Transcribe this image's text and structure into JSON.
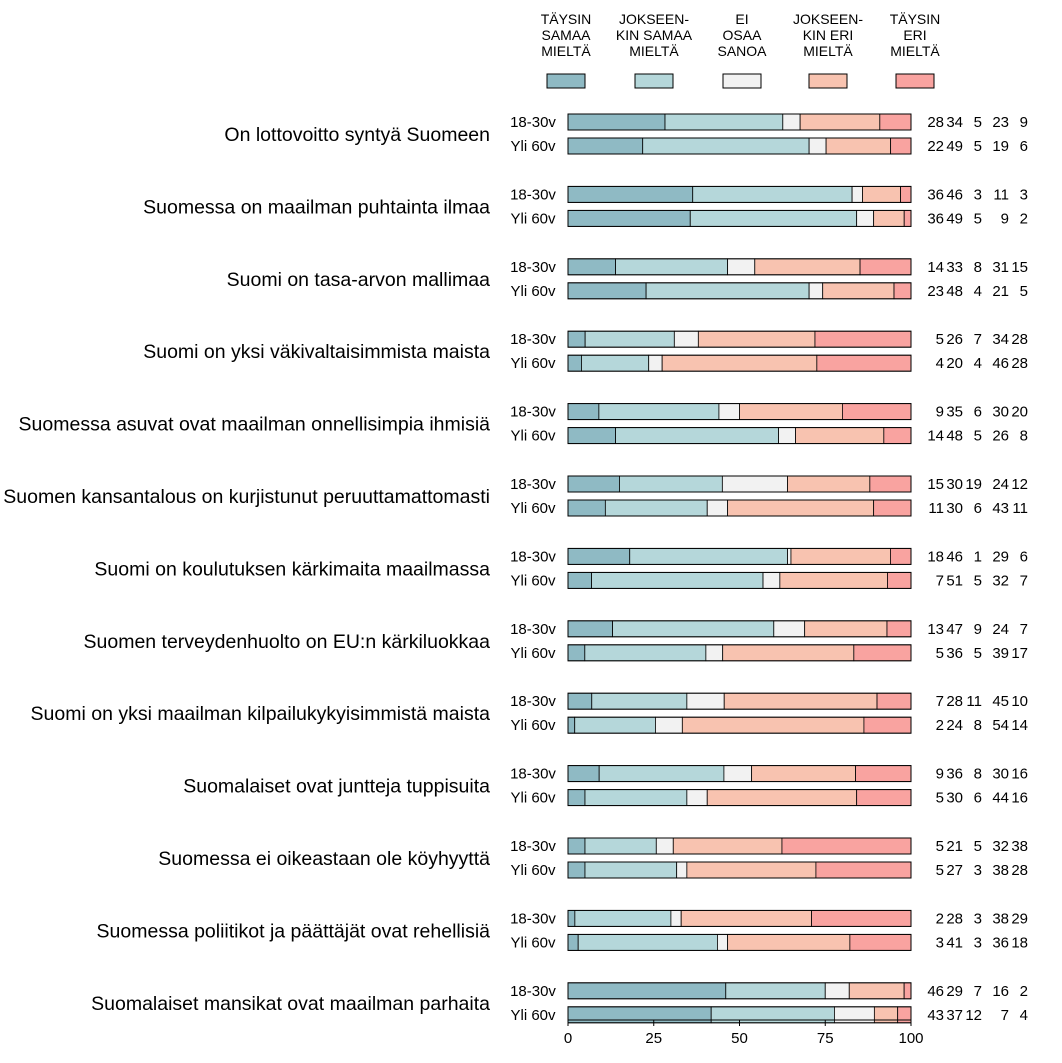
{
  "chart_data": {
    "type": "bar",
    "stacked": true,
    "orientation": "horizontal",
    "legend": {
      "placement": "top",
      "entries": [
        {
          "lines": [
            "TÄYSIN",
            "SAMAA",
            "MIELTÄ"
          ],
          "color": "#8fbac4"
        },
        {
          "lines": [
            "JOKSEEN-",
            "KIN SAMAA",
            "MIELTÄ"
          ],
          "color": "#b5d7da"
        },
        {
          "lines": [
            "EI",
            "OSAA",
            "SANOA"
          ],
          "color": "#f2f2f2"
        },
        {
          "lines": [
            "JOKSEEN-",
            "KIN ERI",
            "MIELTÄ"
          ],
          "color": "#f8c3b0"
        },
        {
          "lines": [
            "TÄYSIN",
            "ERI",
            "MIELTÄ"
          ],
          "color": "#f9a3a0"
        }
      ]
    },
    "groups": [
      "18-30v",
      "Yli 60v"
    ],
    "xlim": [
      0,
      100
    ],
    "xticks": [
      0,
      25,
      50,
      75,
      100
    ],
    "items": [
      {
        "label": "On lottovoitto syntyä Suomeen",
        "rows": [
          [
            28,
            34,
            5,
            23,
            9
          ],
          [
            22,
            49,
            5,
            19,
            6
          ]
        ]
      },
      {
        "label": "Suomessa on maailman puhtainta ilmaa",
        "rows": [
          [
            36,
            46,
            3,
            11,
            3
          ],
          [
            36,
            49,
            5,
            9,
            2
          ]
        ]
      },
      {
        "label": "Suomi on tasa-arvon mallimaa",
        "rows": [
          [
            14,
            33,
            8,
            31,
            15
          ],
          [
            23,
            48,
            4,
            21,
            5
          ]
        ]
      },
      {
        "label": "Suomi on yksi väkivaltaisimmista maista",
        "rows": [
          [
            5,
            26,
            7,
            34,
            28
          ],
          [
            4,
            20,
            4,
            46,
            28
          ]
        ]
      },
      {
        "label": "Suomessa asuvat ovat maailman onnellisimpia ihmisiä",
        "rows": [
          [
            9,
            35,
            6,
            30,
            20
          ],
          [
            14,
            48,
            5,
            26,
            8
          ]
        ]
      },
      {
        "label": "Suomen kansantalous on kurjistunut peruuttamattomasti",
        "rows": [
          [
            15,
            30,
            19,
            24,
            12
          ],
          [
            11,
            30,
            6,
            43,
            11
          ]
        ]
      },
      {
        "label": "Suomi on koulutuksen kärkimaita maailmassa",
        "rows": [
          [
            18,
            46,
            1,
            29,
            6
          ],
          [
            7,
            51,
            5,
            32,
            7
          ]
        ]
      },
      {
        "label": "Suomen terveydenhuolto on EU:n kärkiluokkaa",
        "rows": [
          [
            13,
            47,
            9,
            24,
            7
          ],
          [
            5,
            36,
            5,
            39,
            17
          ]
        ]
      },
      {
        "label": "Suomi on yksi maailman kilpailukykyisimmistä maista",
        "rows": [
          [
            7,
            28,
            11,
            45,
            10
          ],
          [
            2,
            24,
            8,
            54,
            14
          ]
        ]
      },
      {
        "label": "Suomalaiset ovat juntteja tuppisuita",
        "rows": [
          [
            9,
            36,
            8,
            30,
            16
          ],
          [
            5,
            30,
            6,
            44,
            16
          ]
        ]
      },
      {
        "label": "Suomessa ei oikeastaan ole köyhyyttä",
        "rows": [
          [
            5,
            21,
            5,
            32,
            38
          ],
          [
            5,
            27,
            3,
            38,
            28
          ]
        ]
      },
      {
        "label": "Suomessa poliitikot ja päättäjät ovat rehellisiä",
        "rows": [
          [
            2,
            28,
            3,
            38,
            29
          ],
          [
            3,
            41,
            3,
            36,
            18
          ]
        ]
      },
      {
        "label": "Suomalaiset mansikat ovat maailman parhaita",
        "rows": [
          [
            46,
            29,
            7,
            16,
            2
          ],
          [
            43,
            37,
            12,
            7,
            4
          ]
        ]
      }
    ]
  }
}
